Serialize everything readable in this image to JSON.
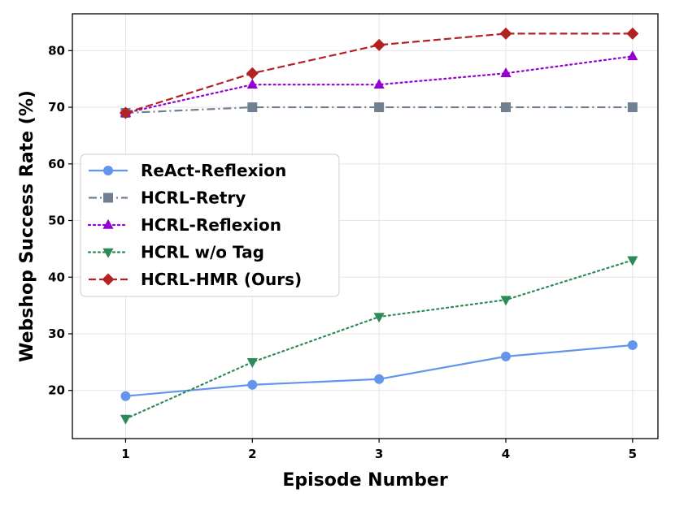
{
  "chart_data": {
    "type": "line",
    "title": "",
    "xlabel": "Episode Number",
    "ylabel": "Webshop Success Rate (%)",
    "x": [
      1,
      2,
      3,
      4,
      5
    ],
    "xlim": [
      0.58,
      5.2
    ],
    "ylim": [
      11.5,
      86.5
    ],
    "xticks": [
      1,
      2,
      3,
      4,
      5
    ],
    "yticks": [
      20,
      30,
      40,
      50,
      60,
      70,
      80
    ],
    "grid": true,
    "legend_position": "center-left",
    "series": [
      {
        "name": "ReAct-Reflexion",
        "values": [
          19,
          21,
          22,
          26,
          28
        ],
        "color": "#6495ed",
        "linestyle": "solid",
        "marker": "circle"
      },
      {
        "name": "HCRL-Retry",
        "values": [
          69,
          70,
          70,
          70,
          70
        ],
        "color": "#708090",
        "linestyle": "dashdot",
        "marker": "square"
      },
      {
        "name": "HCRL-Reflexion",
        "values": [
          69,
          74,
          74,
          76,
          79
        ],
        "color": "#9400d3",
        "linestyle": "dotted",
        "marker": "triangle-up"
      },
      {
        "name": "HCRL w/o Tag",
        "values": [
          15,
          25,
          33,
          36,
          43
        ],
        "color": "#2e8b57",
        "linestyle": "dotted",
        "marker": "triangle-down"
      },
      {
        "name": "HCRL-HMR (Ours)",
        "values": [
          69,
          76,
          81,
          83,
          83
        ],
        "color": "#b22222",
        "linestyle": "dashed",
        "marker": "diamond"
      }
    ]
  }
}
